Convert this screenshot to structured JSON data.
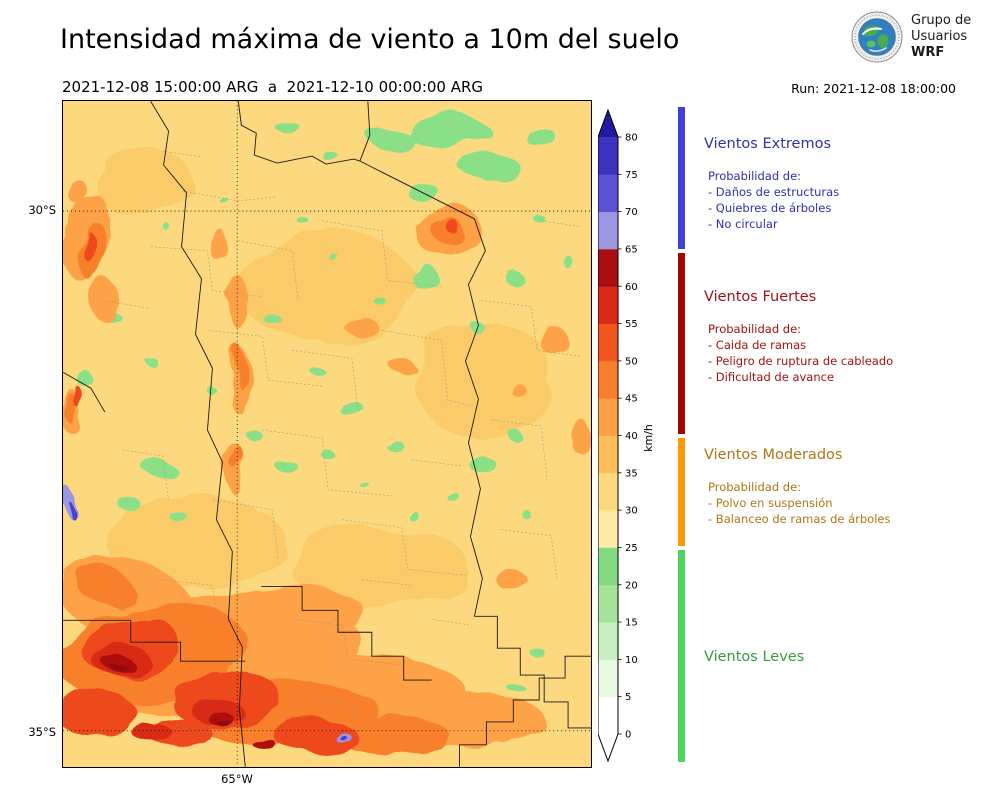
{
  "header": {
    "title": "Intensidad máxima de viento a 10m del suelo",
    "period": "2021-12-08 15:00:00 ARG  a  2021-12-10 00:00:00 ARG",
    "run_label": "Run: 2021-12-08 18:00:00",
    "logo": {
      "line1": "Grupo de",
      "line2": "Usuarios",
      "line3": "WRF"
    }
  },
  "map": {
    "lat_labels": [
      {
        "text": "30°S",
        "y": 0.165
      },
      {
        "text": "35°S",
        "y": 0.946
      }
    ],
    "lon_labels": [
      {
        "text": "65°W",
        "x": 0.33
      }
    ],
    "gridlines": {
      "h": [
        0.165,
        0.946
      ],
      "v": [
        0.33
      ]
    },
    "palette": {
      "base": "#fcd87e",
      "y2": "#fccb69",
      "green": "#8be087",
      "orange": "#fda247",
      "dorange": "#f8802c",
      "red": "#ee4a1f",
      "red2": "#d92a16",
      "dred": "#ad1010",
      "maroon": "#8f070b",
      "purple": "#9d97e3",
      "blue": "#4a42cc"
    },
    "regions": [
      [
        0.5,
        0.28,
        90,
        55,
        0,
        "y2"
      ],
      [
        0.8,
        0.42,
        70,
        60,
        0,
        "y2"
      ],
      [
        0.25,
        0.66,
        90,
        45,
        0,
        "y2"
      ],
      [
        0.6,
        0.7,
        90,
        40,
        0,
        "y2"
      ],
      [
        0.15,
        0.12,
        50,
        35,
        0,
        "y2"
      ],
      [
        0.73,
        0.045,
        42,
        16,
        0,
        "green"
      ],
      [
        0.62,
        0.055,
        22,
        10,
        0,
        "green"
      ],
      [
        0.81,
        0.1,
        30,
        13,
        0,
        "green"
      ],
      [
        0.68,
        0.135,
        16,
        9,
        0,
        "green"
      ],
      [
        0.9,
        0.05,
        16,
        9,
        0,
        "green"
      ],
      [
        0.42,
        0.035,
        12,
        6,
        0,
        "green"
      ],
      [
        0.51,
        0.085,
        8,
        5,
        0,
        "green"
      ],
      [
        0.68,
        0.26,
        12,
        14,
        0,
        "green"
      ],
      [
        0.86,
        0.27,
        9,
        7,
        0,
        "green"
      ],
      [
        0.78,
        0.335,
        7,
        5,
        0,
        "green"
      ],
      [
        0.1,
        0.33,
        9,
        5,
        0,
        "green"
      ],
      [
        0.16,
        0.385,
        6,
        4,
        0,
        "green"
      ],
      [
        0.045,
        0.42,
        7,
        9,
        0,
        "green"
      ],
      [
        0.4,
        0.33,
        9,
        5,
        0,
        "green"
      ],
      [
        0.475,
        0.4,
        7,
        4,
        0,
        "green"
      ],
      [
        0.55,
        0.465,
        13,
        7,
        0,
        "green"
      ],
      [
        0.625,
        0.515,
        9,
        5,
        0,
        "green"
      ],
      [
        0.5,
        0.53,
        7,
        4,
        0,
        "green"
      ],
      [
        0.425,
        0.55,
        11,
        6,
        0,
        "green"
      ],
      [
        0.36,
        0.5,
        8,
        5,
        0,
        "green"
      ],
      [
        0.18,
        0.55,
        15,
        9,
        0,
        "green"
      ],
      [
        0.125,
        0.605,
        11,
        7,
        0,
        "green"
      ],
      [
        0.22,
        0.625,
        9,
        5,
        0,
        "green"
      ],
      [
        0.8,
        0.55,
        13,
        9,
        0,
        "green"
      ],
      [
        0.86,
        0.505,
        7,
        5,
        0,
        "green"
      ],
      [
        0.745,
        0.6,
        7,
        4,
        0,
        "green"
      ],
      [
        0.87,
        0.615,
        5,
        4,
        0,
        "green"
      ],
      [
        0.485,
        0.78,
        9,
        4,
        0,
        "green"
      ],
      [
        0.9,
        0.83,
        7,
        5,
        0,
        "green"
      ],
      [
        0.85,
        0.875,
        9,
        4,
        0,
        "green"
      ],
      [
        0.66,
        0.62,
        6,
        4,
        0,
        "green"
      ],
      [
        0.575,
        0.58,
        5,
        3,
        0,
        "green"
      ],
      [
        0.275,
        0.43,
        5,
        3,
        0,
        "green"
      ],
      [
        0.6,
        0.3,
        6,
        4,
        0,
        "green"
      ],
      [
        0.52,
        0.24,
        5,
        3,
        0,
        "green"
      ],
      [
        0.455,
        0.18,
        6,
        3,
        0,
        "green"
      ],
      [
        0.3,
        0.145,
        5,
        3,
        0,
        "green"
      ],
      [
        0.205,
        0.195,
        4,
        3,
        0,
        "green"
      ],
      [
        0.9,
        0.175,
        6,
        4,
        0,
        "green"
      ],
      [
        0.955,
        0.24,
        5,
        6,
        0,
        "green"
      ],
      [
        0.04,
        0.2,
        20,
        45,
        10,
        "orange"
      ],
      [
        0.08,
        0.3,
        14,
        26,
        -15,
        "orange"
      ],
      [
        0.02,
        0.47,
        10,
        22,
        0,
        "orange"
      ],
      [
        0.33,
        0.3,
        11,
        26,
        0,
        "orange"
      ],
      [
        0.335,
        0.42,
        10,
        34,
        0,
        "orange"
      ],
      [
        0.33,
        0.555,
        9,
        26,
        0,
        "orange"
      ],
      [
        0.3,
        0.22,
        8,
        14,
        20,
        "orange"
      ],
      [
        0.73,
        0.195,
        34,
        22,
        -10,
        "orange"
      ],
      [
        0.56,
        0.335,
        17,
        9,
        0,
        "orange"
      ],
      [
        0.645,
        0.4,
        12,
        7,
        0,
        "orange"
      ],
      [
        0.93,
        0.36,
        12,
        16,
        0,
        "orange"
      ],
      [
        0.975,
        0.5,
        9,
        18,
        0,
        "orange"
      ],
      [
        0.87,
        0.44,
        8,
        6,
        0,
        "orange"
      ],
      [
        0.28,
        0.83,
        150,
        60,
        -5,
        "orange"
      ],
      [
        0.12,
        0.75,
        70,
        40,
        15,
        "orange"
      ],
      [
        0.52,
        0.9,
        130,
        45,
        -3,
        "orange"
      ],
      [
        0.78,
        0.93,
        70,
        28,
        0,
        "orange"
      ],
      [
        0.46,
        0.76,
        55,
        20,
        0,
        "orange"
      ],
      [
        0.85,
        0.72,
        16,
        9,
        0,
        "orange"
      ],
      [
        0.02,
        0.13,
        8,
        14,
        0,
        "orange"
      ],
      [
        0.05,
        0.22,
        11,
        30,
        8,
        "dorange"
      ],
      [
        0.02,
        0.465,
        6,
        15,
        0,
        "dorange"
      ],
      [
        0.17,
        0.83,
        95,
        48,
        -8,
        "dorange"
      ],
      [
        0.42,
        0.92,
        95,
        32,
        -2,
        "dorange"
      ],
      [
        0.08,
        0.73,
        32,
        18,
        20,
        "dorange"
      ],
      [
        0.73,
        0.195,
        17,
        11,
        0,
        "dorange"
      ],
      [
        0.335,
        0.4,
        5,
        20,
        0,
        "dorange"
      ],
      [
        0.335,
        0.54,
        4,
        14,
        0,
        "dorange"
      ],
      [
        0.63,
        0.955,
        55,
        20,
        0,
        "dorange"
      ],
      [
        0.13,
        0.82,
        48,
        30,
        -10,
        "red"
      ],
      [
        0.31,
        0.9,
        55,
        26,
        -5,
        "red"
      ],
      [
        0.06,
        0.92,
        42,
        22,
        0,
        "red"
      ],
      [
        0.48,
        0.955,
        42,
        16,
        0,
        "red"
      ],
      [
        0.035,
        0.45,
        4,
        11,
        0,
        "red"
      ],
      [
        0.045,
        0.215,
        5,
        16,
        0,
        "red"
      ],
      [
        0.74,
        0.19,
        8,
        5,
        0,
        "red"
      ],
      [
        0.22,
        0.95,
        32,
        14,
        0,
        "red"
      ],
      [
        0.11,
        0.84,
        26,
        16,
        -10,
        "red2"
      ],
      [
        0.29,
        0.915,
        26,
        12,
        0,
        "red2"
      ],
      [
        0.17,
        0.95,
        20,
        9,
        0,
        "red2"
      ],
      [
        0.105,
        0.845,
        14,
        9,
        0,
        "dred"
      ],
      [
        0.295,
        0.925,
        13,
        6,
        0,
        "dred"
      ],
      [
        0.38,
        0.965,
        12,
        5,
        0,
        "dred"
      ],
      [
        0.105,
        0.85,
        7,
        4,
        0,
        "maroon"
      ],
      [
        0.3,
        0.93,
        7,
        3,
        0,
        "maroon"
      ],
      [
        0.008,
        0.6,
        7,
        13,
        0,
        "purple"
      ],
      [
        0.525,
        0.952,
        9,
        4,
        0,
        "purple"
      ],
      [
        0.01,
        0.61,
        3,
        7,
        0,
        "blue"
      ],
      [
        0.525,
        0.952,
        4,
        2,
        0,
        "blue"
      ]
    ],
    "borders": [
      "M88,0 L106,30 L101,64 L124,92 L119,146 L139,178 L133,234 L150,268 L145,330 L160,362 L154,420 L170,452 L166,520 L180,548 L177,610 L183,668",
      "M176,0 L179,24 L194,32 L192,54 L215,62 L250,55 L264,63 L292,58 L298,60",
      "M298,60 L308,34 L306,0",
      "M298,60 L413,118",
      "M413,118 L424,150 L407,184 L417,225 L404,261 L417,299 L407,343 L419,389 L409,437 L421,479 L413,517",
      "M413,517 L436,517 L436,549 L459,549 L459,576 L483,576 L483,603 L507,603 L507,629 L530,629",
      "M398,668 L398,646 L425,646 L425,623 L452,623 L452,601 L478,601 L478,579 L504,579 L504,557 L530,557",
      "M0,521 L68,521 L68,543 L118,543 L118,562 L183,562",
      "M0,272 L28,288 L42,312",
      "M199,487 L240,487 L240,511 L276,511 L276,533 L310,533 L310,557 L342,557 L342,581 L370,581"
    ],
    "internal_borders": [
      "M88,146 L145,150 L150,190 L200,196",
      "M120,90 L176,100 L214,96",
      "M145,230 L200,236 L206,280 L260,286",
      "M176,140 L230,150 L236,200",
      "M260,120 L320,130 L326,180 L380,186",
      "M230,250 L290,258 L296,310",
      "M320,230 L380,240 L386,300 L410,306",
      "M200,330 L260,338 L266,390 L330,396",
      "M150,400 L210,410 L216,460",
      "M280,420 L340,428 L346,470 L404,476",
      "M96,480 L150,486 L156,520",
      "M230,520 L280,526 L286,560 L340,566",
      "M60,350 L100,356 L106,400",
      "M350,360 L400,366",
      "M420,200 L470,206 L476,250 L520,256",
      "M430,320 L480,326 L486,380",
      "M440,430 L490,436 L496,480",
      "M60,590 L110,596 L116,630 L170,636",
      "M240,600 L290,606 L296,640",
      "M370,520 L410,526",
      "M40,200 L88,208",
      "M300,480 L350,486",
      "M480,120 L520,126",
      "M100,50 L140,56"
    ]
  },
  "colorbar": {
    "unit": "km/h",
    "max": 80,
    "ticks": [
      0,
      5,
      10,
      15,
      20,
      25,
      30,
      35,
      40,
      45,
      50,
      55,
      60,
      65,
      70,
      75,
      80
    ],
    "colors": [
      "#ffffff",
      "#e7f8e0",
      "#c9efc0",
      "#a5e29a",
      "#83da80",
      "#ffeaa6",
      "#fdd97f",
      "#fdbd5c",
      "#fd9f44",
      "#f97e2e",
      "#f1561f",
      "#dc2a18",
      "#a90d11",
      "#9d97e3",
      "#5c52d5",
      "#3a33bf"
    ],
    "over_color": "#1f1a9e",
    "under_color": "#ffffff"
  },
  "legend": {
    "sections": [
      {
        "title": "Vientos Extremos",
        "strip_color": "#4040d8",
        "text_color": "#3030b0",
        "items": [
          "Probabilidad de:",
          "- Daños de estructuras",
          "- Quiebres de árboles",
          "- No circular"
        ]
      },
      {
        "title": "Vientos Fuertes",
        "strip_color": "#a30505",
        "text_color": "#a31212",
        "items": [
          "Probabilidad de:",
          "- Caida de ramas",
          "- Peligro de ruptura de cableado",
          "- Dificultad de avance"
        ]
      },
      {
        "title": "Vientos Moderados",
        "strip_color": "#ff9900",
        "text_color": "#b07512",
        "items": [
          "Probabilidad de:",
          "- Polvo en suspensión",
          "- Balanceo de ramas de árboles"
        ]
      },
      {
        "title": "Vientos Leves",
        "strip_color": "#4fd45f",
        "text_color": "#3a9a43",
        "items": []
      }
    ]
  },
  "chart_data": {
    "type": "heatmap",
    "title": "Intensidad máxima de viento a 10m del suelo",
    "valid_from": "2021-12-08 15:00:00 ARG",
    "valid_to": "2021-12-10 00:00:00 ARG",
    "model_run": "2021-12-08 18:00:00",
    "unit": "km/h",
    "scale_ticks": [
      0,
      5,
      10,
      15,
      20,
      25,
      30,
      35,
      40,
      45,
      50,
      55,
      60,
      65,
      70,
      75,
      80
    ],
    "scale_range": [
      0,
      80
    ],
    "categories": [
      {
        "name": "Vientos Leves",
        "range_kmh": [
          0,
          25
        ]
      },
      {
        "name": "Vientos Moderados",
        "range_kmh": [
          25,
          40
        ]
      },
      {
        "name": "Vientos Fuertes",
        "range_kmh": [
          40,
          65
        ]
      },
      {
        "name": "Vientos Extremos",
        "range_kmh": [
          65,
          null
        ]
      }
    ],
    "map_ticks": {
      "lat": [
        "30°S",
        "35°S"
      ],
      "lon": [
        "65°W"
      ]
    },
    "legend_position": "right"
  }
}
